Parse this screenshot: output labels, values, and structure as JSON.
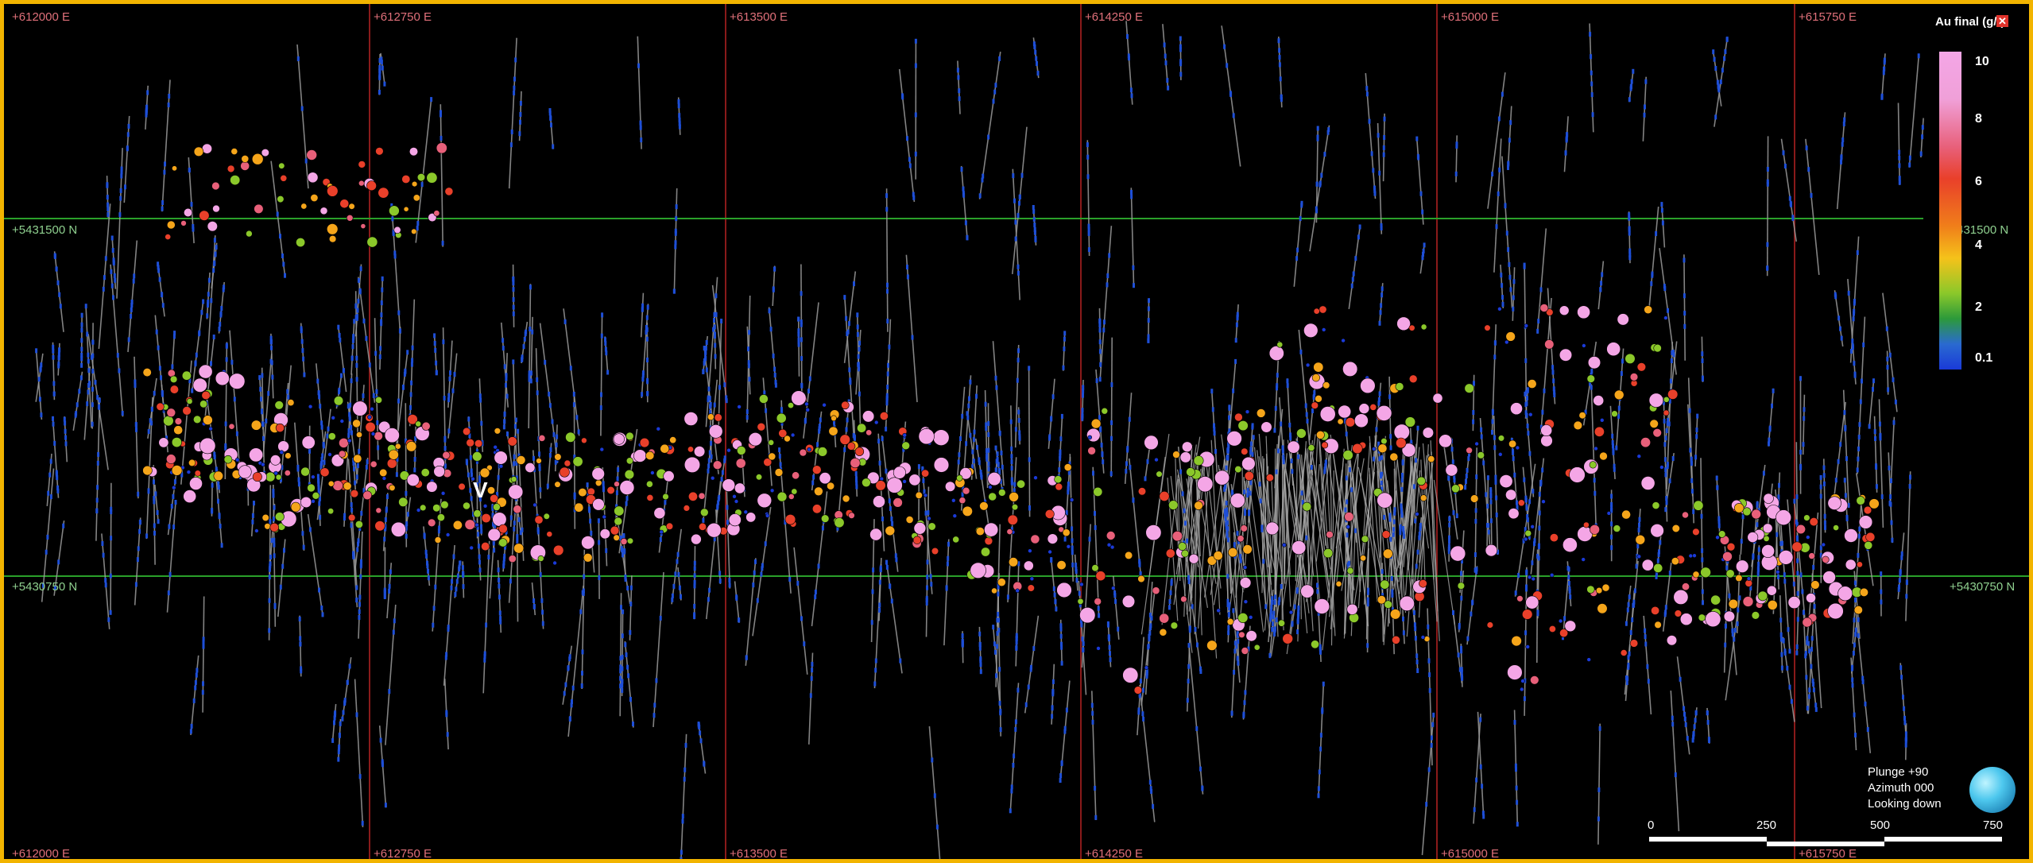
{
  "view": {
    "frame_color": "#f2b400",
    "east_labels": [
      "+612000 E",
      "+612750 E",
      "+613500 E",
      "+614250 E",
      "+615000 E",
      "+615750 E"
    ],
    "north_labels": [
      "+5431500 N",
      "+5430750 N"
    ],
    "easting_line_color": "#8a1a1a",
    "northing_line_color": "#2aa02a"
  },
  "legend": {
    "title": "Au final (g/t)",
    "close_icon": "close-icon",
    "ticks": [
      "10",
      "8",
      "6",
      "4",
      "2",
      "0.1"
    ],
    "colors": [
      "#f4a6e6",
      "#e8607a",
      "#e9402a",
      "#f5a51a",
      "#8bc82a",
      "#1a3ad8"
    ]
  },
  "orientation": {
    "plunge": "Plunge +90",
    "azimuth": "Azimuth 000",
    "looking": "Looking down"
  },
  "scale_bar": {
    "labels": [
      "0",
      "250",
      "500",
      "750"
    ]
  },
  "cursor": "V"
}
